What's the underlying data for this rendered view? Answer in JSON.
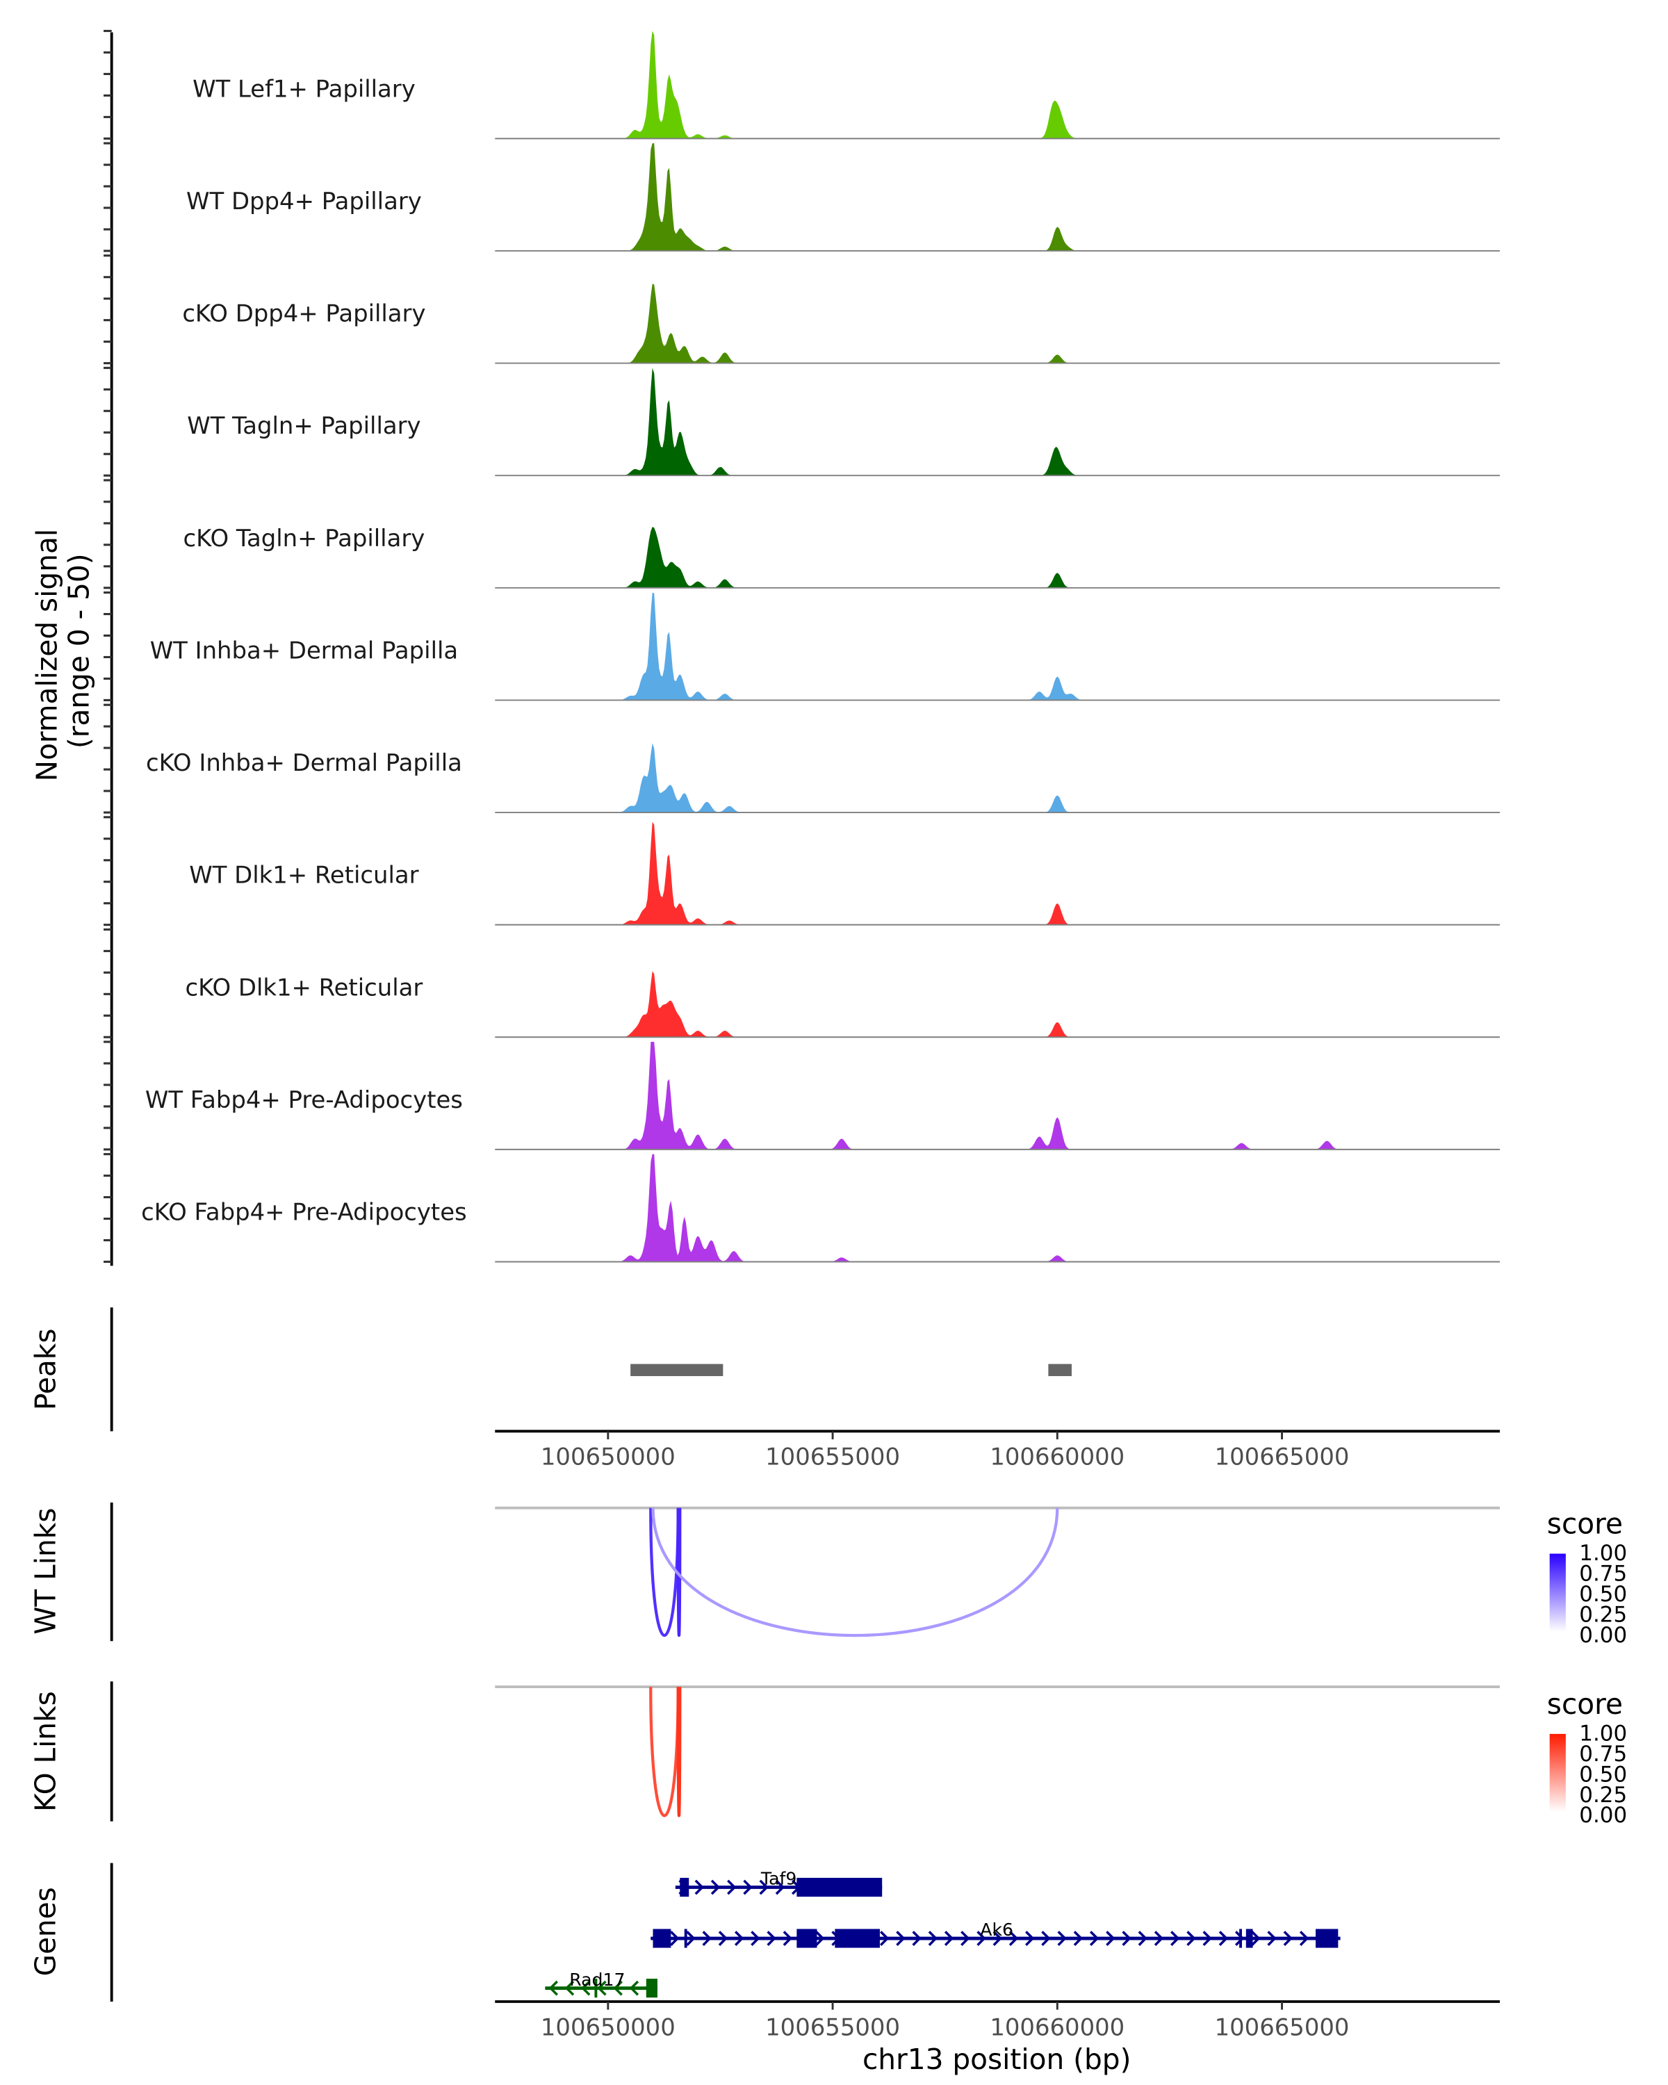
{
  "chart_data": {
    "type": "area",
    "title": "",
    "chromosome": "chr13",
    "xlabel": "chr13 position (bp)",
    "xlim": [
      100647485,
      100669850
    ],
    "x_ticks": [
      100650000,
      100655000,
      100660000,
      100665000
    ],
    "x_tick_labels": [
      "100650000",
      "100655000",
      "100660000",
      "100665000"
    ],
    "coverage": {
      "ylabel_line1": "Normalized signal",
      "ylabel_line2": "(range 0 - 50)",
      "ylim": [
        0,
        50
      ],
      "tracks": [
        {
          "name": "WT Lef1+ Papillary",
          "color": "#66CC00",
          "peaks": [
            [
              100650600,
              4
            ],
            [
              100650900,
              10
            ],
            [
              100651000,
              47
            ],
            [
              100651200,
              6
            ],
            [
              100651350,
              24
            ],
            [
              100651500,
              15
            ],
            [
              100651600,
              4
            ],
            [
              100652000,
              2
            ],
            [
              100652600,
              1.5
            ],
            [
              100659900,
              14
            ],
            [
              100660050,
              10
            ],
            [
              100660200,
              2
            ]
          ]
        },
        {
          "name": "WT Dpp4+ Papillary",
          "color": "#4C8C00",
          "peaks": [
            [
              100650700,
              4
            ],
            [
              100650900,
              16
            ],
            [
              100651000,
              43
            ],
            [
              100651150,
              12
            ],
            [
              100651350,
              38
            ],
            [
              100651600,
              10
            ],
            [
              100651800,
              5
            ],
            [
              100652000,
              2
            ],
            [
              100652600,
              2
            ],
            [
              100660000,
              11
            ],
            [
              100660200,
              2
            ]
          ]
        },
        {
          "name": "cKO Dpp4+ Papillary",
          "color": "#4C8C00",
          "peaks": [
            [
              100650700,
              5
            ],
            [
              100650900,
              12
            ],
            [
              100651000,
              22
            ],
            [
              100651100,
              16
            ],
            [
              100651400,
              14
            ],
            [
              100651700,
              8
            ],
            [
              100652100,
              3
            ],
            [
              100652600,
              5
            ],
            [
              100660000,
              4
            ]
          ]
        },
        {
          "name": "WT Tagln+ Papillary",
          "color": "#006400",
          "peaks": [
            [
              100650600,
              3
            ],
            [
              100650900,
              8
            ],
            [
              100651000,
              43
            ],
            [
              100651150,
              12
            ],
            [
              100651350,
              34
            ],
            [
              100651600,
              20
            ],
            [
              100651800,
              5
            ],
            [
              100652500,
              4
            ],
            [
              100659900,
              5
            ],
            [
              100660000,
              10
            ],
            [
              100660200,
              3
            ]
          ]
        },
        {
          "name": "cKO Tagln+ Papillary",
          "color": "#006400",
          "peaks": [
            [
              100650600,
              3
            ],
            [
              100650900,
              9
            ],
            [
              100651000,
              20
            ],
            [
              100651150,
              13
            ],
            [
              100651400,
              11
            ],
            [
              100651600,
              8
            ],
            [
              100652000,
              3
            ],
            [
              100652600,
              4
            ],
            [
              100660000,
              7
            ]
          ]
        },
        {
          "name": "WT Inhba+ Dermal Papilla",
          "color": "#5AAAE6",
          "peaks": [
            [
              100650500,
              2
            ],
            [
              100650800,
              12
            ],
            [
              100651000,
              49
            ],
            [
              100651150,
              10
            ],
            [
              100651350,
              31
            ],
            [
              100651600,
              12
            ],
            [
              100652000,
              4
            ],
            [
              100652600,
              3
            ],
            [
              100659600,
              4
            ],
            [
              100660000,
              11
            ],
            [
              100660300,
              3
            ]
          ]
        },
        {
          "name": "cKO Inhba+ Dermal Papilla",
          "color": "#5AAAE6",
          "peaks": [
            [
              100650500,
              3
            ],
            [
              100650800,
              17
            ],
            [
              100651000,
              30
            ],
            [
              100651200,
              8
            ],
            [
              100651400,
              12
            ],
            [
              100651700,
              9
            ],
            [
              100652200,
              5
            ],
            [
              100652700,
              3
            ],
            [
              100660000,
              8
            ]
          ]
        },
        {
          "name": "WT Dlk1+ Reticular",
          "color": "#FF2E2E",
          "peaks": [
            [
              100650500,
              2
            ],
            [
              100650800,
              7
            ],
            [
              100651000,
              45
            ],
            [
              100651150,
              12
            ],
            [
              100651350,
              32
            ],
            [
              100651600,
              10
            ],
            [
              100652000,
              3
            ],
            [
              100652700,
              2
            ],
            [
              100660000,
              10
            ]
          ]
        },
        {
          "name": "cKO Dlk1+ Reticular",
          "color": "#FF2E2E",
          "peaks": [
            [
              100650600,
              3
            ],
            [
              100650800,
              10
            ],
            [
              100651000,
              29
            ],
            [
              100651200,
              13
            ],
            [
              100651400,
              15
            ],
            [
              100651600,
              8
            ],
            [
              100652000,
              3
            ],
            [
              100652600,
              3
            ],
            [
              100660000,
              7
            ]
          ]
        },
        {
          "name": "WT Fabp4+ Pre-Adipocytes",
          "color": "#B038E8",
          "peaks": [
            [
              100650600,
              5
            ],
            [
              100650900,
              14
            ],
            [
              100651000,
              50
            ],
            [
              100651150,
              12
            ],
            [
              100651350,
              32
            ],
            [
              100651600,
              10
            ],
            [
              100652000,
              7
            ],
            [
              100652600,
              5
            ],
            [
              100655200,
              5
            ],
            [
              100659600,
              6
            ],
            [
              100660000,
              15
            ],
            [
              100664100,
              3
            ],
            [
              100666000,
              4
            ]
          ]
        },
        {
          "name": "cKO Fabp4+ Pre-Adipocytes",
          "color": "#B038E8",
          "peaks": [
            [
              100650500,
              3
            ],
            [
              100650900,
              12
            ],
            [
              100651000,
              48
            ],
            [
              100651200,
              15
            ],
            [
              100651400,
              27
            ],
            [
              100651700,
              21
            ],
            [
              100652000,
              12
            ],
            [
              100652300,
              10
            ],
            [
              100652800,
              5
            ],
            [
              100655200,
              2
            ],
            [
              100660000,
              3
            ]
          ]
        }
      ]
    },
    "peaks_track": {
      "label": "Peaks",
      "color": "#666666",
      "regions": [
        [
          100650500,
          100652560
        ],
        [
          100659800,
          100660320
        ]
      ]
    },
    "links": [
      {
        "label": "WT Links",
        "legend_title": "score",
        "color_low": "#FFFFFF",
        "color_high": "#2A00FF",
        "legend_ticks": [
          "1.00",
          "0.75",
          "0.50",
          "0.25",
          "0.00"
        ],
        "arcs": [
          {
            "start": 100650950,
            "end": 100651560,
            "score": 0.75
          },
          {
            "start": 100651560,
            "end": 100651600,
            "score": 0.8
          },
          {
            "start": 100651000,
            "end": 100660000,
            "score": 0.2
          }
        ]
      },
      {
        "label": "KO Links",
        "legend_title": "score",
        "color_low": "#FFFFFF",
        "color_high": "#FF1A00",
        "legend_ticks": [
          "1.00",
          "0.75",
          "0.50",
          "0.25",
          "0.00"
        ],
        "arcs": [
          {
            "start": 100650950,
            "end": 100651560,
            "score": 0.7
          },
          {
            "start": 100651560,
            "end": 100651600,
            "score": 0.85
          }
        ]
      }
    ],
    "genes": {
      "label": "Genes",
      "items": [
        {
          "name": "Taf9",
          "strand": "+",
          "color": "#00008B",
          "start": 100651500,
          "end": 100656100,
          "exons": [
            [
              100651600,
              100651800
            ],
            [
              100654200,
              100656100
            ]
          ]
        },
        {
          "name": "Ak6",
          "strand": "+",
          "color": "#00008B",
          "start": 100650950,
          "end": 100666300,
          "exons": [
            [
              100651000,
              100651400
            ],
            [
              100651700,
              100651760
            ],
            [
              100654200,
              100654650
            ],
            [
              100655050,
              100656050
            ],
            [
              100664050,
              100664100
            ],
            [
              100664200,
              100664350
            ],
            [
              100665750,
              100666250
            ]
          ]
        },
        {
          "name": "Rad17",
          "strand": "-",
          "color": "#006400",
          "start": 100648600,
          "end": 100651100,
          "exons": [
            [
              100649700,
              100649760
            ],
            [
              100650850,
              100651100
            ]
          ]
        }
      ]
    }
  }
}
